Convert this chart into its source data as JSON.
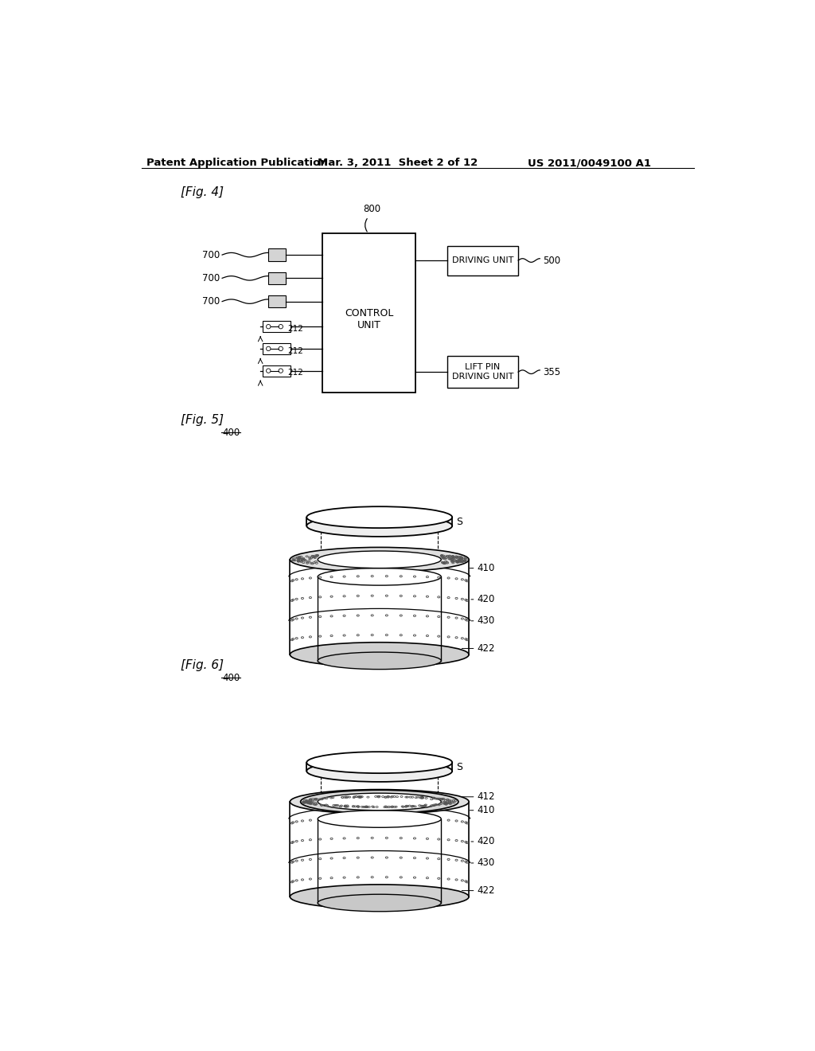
{
  "bg_color": "#ffffff",
  "header1": "Patent Application Publication",
  "header2": "Mar. 3, 2011  Sheet 2 of 12",
  "header3": "US 2011/0049100 A1",
  "fig4_label": "[Fig. 4]",
  "fig5_label": "[Fig. 5]",
  "fig6_label": "[Fig. 6]",
  "fig_width": 10.24,
  "fig_height": 13.2
}
